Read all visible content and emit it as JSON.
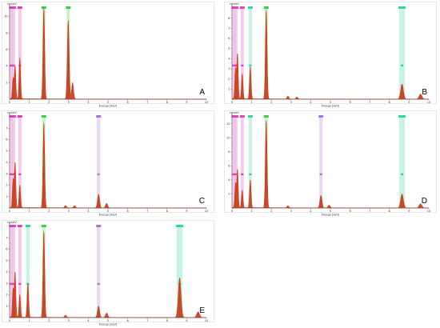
{
  "colors": {
    "spectrum": "#d23a10",
    "spectrum_fill": "#c2300c",
    "magenta": "#e040c0",
    "green": "#3ad040",
    "violet": "#b070e0",
    "teal": "#30d8a0",
    "axis": "#444444"
  },
  "chart_data": [
    {
      "type": "area",
      "label": "A",
      "ylabel": "cps/eV",
      "xlabel": "Energy [keV]",
      "xlim": [
        0,
        10
      ],
      "ylim": [
        0,
        11
      ],
      "xticks": [
        "0",
        "1",
        "2",
        "3",
        "4",
        "5",
        "6",
        "7",
        "8",
        "9",
        "10"
      ],
      "yticks": [
        "2",
        "4",
        "6",
        "8",
        "10"
      ],
      "peaks": [
        [
          0.18,
          2.5
        ],
        [
          0.28,
          4.0
        ],
        [
          0.52,
          5.0
        ],
        [
          1.74,
          11.0
        ],
        [
          2.98,
          9.5
        ],
        [
          3.2,
          2.0
        ]
      ],
      "markers": [
        {
          "x": 0.08,
          "color": "magenta"
        },
        {
          "x": 0.2,
          "color": "magenta"
        },
        {
          "x": 0.52,
          "color": "magenta"
        },
        {
          "x": 1.74,
          "color": "green"
        },
        {
          "x": 2.98,
          "color": "green"
        }
      ]
    },
    {
      "type": "area",
      "label": "B",
      "ylabel": "cps/eV",
      "xlabel": "Energy [keV]",
      "xlim": [
        0,
        10
      ],
      "ylim": [
        0,
        9
      ],
      "xticks": [
        "0",
        "1",
        "2",
        "3",
        "4",
        "5",
        "6",
        "7",
        "8",
        "9",
        "10"
      ],
      "yticks": [
        "1",
        "2",
        "3",
        "4",
        "5",
        "6",
        "7",
        "8"
      ],
      "peaks": [
        [
          0.18,
          3.0
        ],
        [
          0.28,
          4.5
        ],
        [
          0.52,
          2.5
        ],
        [
          0.93,
          3.2
        ],
        [
          1.74,
          8.8
        ],
        [
          2.84,
          0.3
        ],
        [
          3.3,
          0.2
        ],
        [
          8.64,
          1.5
        ],
        [
          9.58,
          0.5
        ]
      ],
      "markers": [
        {
          "x": 0.08,
          "color": "magenta"
        },
        {
          "x": 0.2,
          "color": "magenta"
        },
        {
          "x": 0.52,
          "color": "magenta"
        },
        {
          "x": 0.93,
          "color": "teal"
        },
        {
          "x": 1.74,
          "color": "green"
        },
        {
          "x": 8.64,
          "color": "teal"
        }
      ]
    },
    {
      "type": "area",
      "label": "C",
      "ylabel": "cps/eV",
      "xlabel": "Energy [keV]",
      "xlim": [
        0,
        10
      ],
      "ylim": [
        0,
        8
      ],
      "xticks": [
        "0",
        "1",
        "2",
        "3",
        "4",
        "5",
        "6",
        "7",
        "8",
        "9",
        "10"
      ],
      "yticks": [
        "1",
        "2",
        "3",
        "4",
        "5",
        "6",
        "7"
      ],
      "peaks": [
        [
          0.18,
          2.5
        ],
        [
          0.28,
          4.0
        ],
        [
          0.52,
          2.0
        ],
        [
          1.74,
          7.5
        ],
        [
          2.84,
          0.2
        ],
        [
          3.3,
          0.2
        ],
        [
          4.52,
          1.2
        ],
        [
          4.93,
          0.4
        ]
      ],
      "markers": [
        {
          "x": 0.08,
          "color": "magenta"
        },
        {
          "x": 0.2,
          "color": "magenta"
        },
        {
          "x": 0.52,
          "color": "magenta"
        },
        {
          "x": 1.74,
          "color": "green"
        },
        {
          "x": 4.52,
          "color": "violet"
        }
      ]
    },
    {
      "type": "area",
      "label": "D",
      "ylabel": "cps/eV",
      "xlabel": "Energy [keV]",
      "xlim": [
        0,
        10
      ],
      "ylim": [
        0,
        13
      ],
      "xticks": [
        "0",
        "1",
        "2",
        "3",
        "4",
        "5",
        "6",
        "7",
        "8",
        "9",
        "10"
      ],
      "yticks": [
        "2",
        "4",
        "6",
        "8",
        "10",
        "12"
      ],
      "peaks": [
        [
          0.18,
          3.5
        ],
        [
          0.28,
          5.5
        ],
        [
          0.52,
          2.5
        ],
        [
          0.93,
          4.0
        ],
        [
          1.74,
          12.5
        ],
        [
          2.84,
          0.3
        ],
        [
          4.52,
          1.8
        ],
        [
          4.93,
          0.4
        ],
        [
          8.64,
          2.0
        ],
        [
          9.58,
          0.6
        ]
      ],
      "markers": [
        {
          "x": 0.08,
          "color": "magenta"
        },
        {
          "x": 0.2,
          "color": "magenta"
        },
        {
          "x": 0.52,
          "color": "magenta"
        },
        {
          "x": 0.93,
          "color": "teal"
        },
        {
          "x": 1.74,
          "color": "green"
        },
        {
          "x": 4.52,
          "color": "violet"
        },
        {
          "x": 8.64,
          "color": "teal"
        }
      ]
    },
    {
      "type": "area",
      "label": "E",
      "ylabel": "cps/eV",
      "xlabel": "Energy [keV]",
      "xlim": [
        0,
        10
      ],
      "ylim": [
        0,
        8
      ],
      "xticks": [
        "0",
        "1",
        "2",
        "3",
        "4",
        "5",
        "6",
        "7",
        "8",
        "9",
        "10"
      ],
      "yticks": [
        "1",
        "2",
        "3",
        "4",
        "5",
        "6",
        "7"
      ],
      "peaks": [
        [
          0.18,
          2.5
        ],
        [
          0.28,
          4.0
        ],
        [
          0.52,
          2.0
        ],
        [
          0.93,
          3.0
        ],
        [
          1.74,
          7.6
        ],
        [
          2.84,
          0.2
        ],
        [
          4.52,
          1.0
        ],
        [
          4.93,
          0.4
        ],
        [
          8.64,
          3.5
        ],
        [
          9.58,
          0.5
        ]
      ],
      "markers": [
        {
          "x": 0.08,
          "color": "magenta"
        },
        {
          "x": 0.2,
          "color": "magenta"
        },
        {
          "x": 0.52,
          "color": "magenta"
        },
        {
          "x": 0.93,
          "color": "teal"
        },
        {
          "x": 1.74,
          "color": "green"
        },
        {
          "x": 4.52,
          "color": "violet"
        },
        {
          "x": 8.64,
          "color": "teal"
        }
      ]
    }
  ]
}
